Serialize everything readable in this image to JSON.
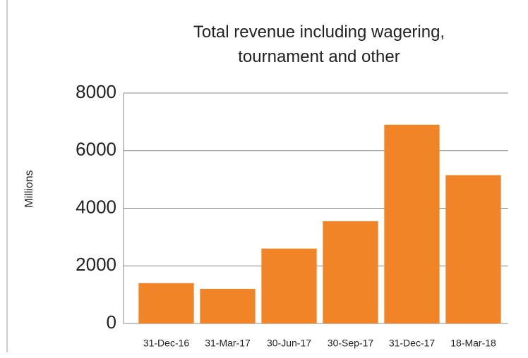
{
  "chart_data": {
    "type": "bar",
    "title": "Total revenue including wagering, tournament and other",
    "y_label": "Millions",
    "categories": [
      "31-Dec-16",
      "31-Mar-17",
      "30-Jun-17",
      "30-Sep-17",
      "31-Dec-17",
      "18-Mar-18"
    ],
    "values": [
      1400,
      1200,
      2600,
      3550,
      6900,
      5150
    ],
    "color": "#f28428",
    "ylim": [
      0,
      8000
    ],
    "yticks": [
      0,
      2000,
      4000,
      6000,
      8000
    ],
    "grid": true
  }
}
